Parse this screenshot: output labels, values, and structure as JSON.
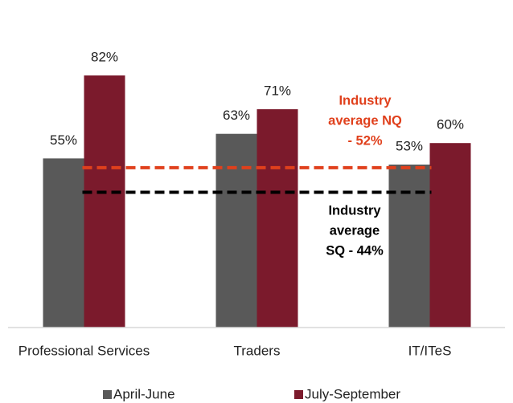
{
  "chart_data": {
    "type": "bar",
    "categories": [
      "Professional Services",
      "Traders",
      "IT/ITeS"
    ],
    "series": [
      {
        "name": "April-June",
        "color": "#595959",
        "values": [
          55,
          63,
          53
        ],
        "value_labels": [
          "55%",
          "63%",
          "53%"
        ]
      },
      {
        "name": "July-September",
        "color": "#7b1a2c",
        "values": [
          82,
          71,
          60
        ],
        "value_labels": [
          "82%",
          "71%",
          "60%"
        ]
      }
    ],
    "ylim": [
      0,
      100
    ],
    "reference_lines": [
      {
        "value": 52,
        "color": "#e0401c",
        "lines": [
          "Industry",
          "average NQ",
          "- 52%"
        ]
      },
      {
        "value": 44,
        "color": "#000000",
        "lines": [
          "Industry",
          "average",
          "SQ - 44%"
        ]
      }
    ],
    "legend": "bottom"
  }
}
